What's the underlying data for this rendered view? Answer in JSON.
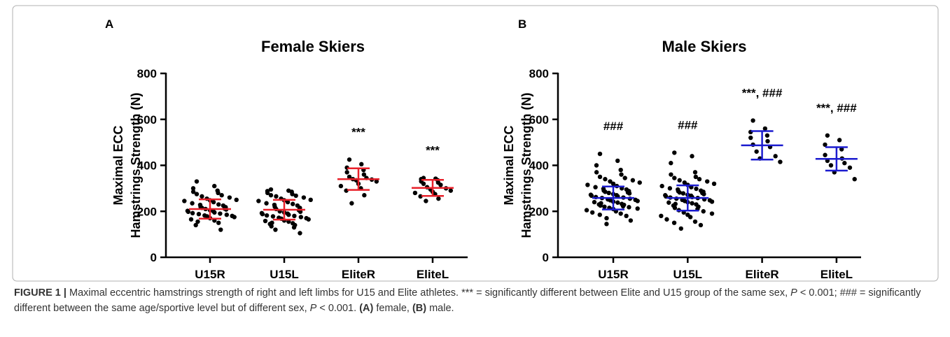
{
  "chart_data": [
    {
      "type": "dotplot",
      "panel_label": "A",
      "title": "Female Skiers",
      "y_label": [
        "Maximal ECC",
        "Hamstrings Strength (N)"
      ],
      "categories": [
        "U15R",
        "U15L",
        "EliteR",
        "EliteL"
      ],
      "ylim": [
        0,
        800
      ],
      "yticks": [
        0,
        200,
        400,
        600,
        800
      ],
      "point_color": "#000000",
      "summary_color": "#e8202a",
      "points": [
        [
          330,
          310,
          300,
          290,
          285,
          280,
          275,
          270,
          265,
          260,
          255,
          250,
          248,
          245,
          240,
          235,
          230,
          228,
          225,
          220,
          218,
          215,
          212,
          210,
          208,
          205,
          202,
          200,
          198,
          195,
          192,
          190,
          188,
          185,
          182,
          180,
          178,
          175,
          170,
          165,
          160,
          155,
          150,
          140,
          120
        ],
        [
          295,
          290,
          288,
          285,
          280,
          275,
          270,
          268,
          265,
          260,
          255,
          250,
          248,
          245,
          240,
          235,
          232,
          228,
          225,
          220,
          215,
          210,
          205,
          200,
          198,
          195,
          192,
          190,
          188,
          185,
          182,
          180,
          178,
          175,
          172,
          170,
          168,
          165,
          160,
          158,
          155,
          150,
          148,
          145,
          140,
          135,
          130,
          120,
          105
        ],
        [
          425,
          405,
          390,
          380,
          370,
          360,
          350,
          345,
          340,
          338,
          335,
          330,
          320,
          310,
          300,
          290,
          270,
          235
        ],
        [
          345,
          342,
          340,
          335,
          330,
          325,
          320,
          315,
          305,
          300,
          295,
          290,
          285,
          280,
          275,
          265,
          255,
          245
        ]
      ],
      "mean": [
        210,
        207,
        340,
        302
      ],
      "sd": [
        42,
        43,
        47,
        35
      ],
      "annotations": [
        null,
        null,
        "***",
        "***"
      ]
    },
    {
      "type": "dotplot",
      "panel_label": "B",
      "title": "Male Skiers",
      "y_label": [
        "Maximal ECC",
        "Hamstrings Strength (N)"
      ],
      "categories": [
        "U15R",
        "U15L",
        "EliteR",
        "EliteL"
      ],
      "ylim": [
        0,
        800
      ],
      "yticks": [
        0,
        200,
        400,
        600,
        800
      ],
      "point_color": "#000000",
      "summary_color": "#1c1ccf",
      "points": [
        [
          450,
          420,
          400,
          380,
          370,
          360,
          350,
          345,
          340,
          335,
          330,
          325,
          320,
          315,
          310,
          305,
          300,
          298,
          295,
          290,
          288,
          285,
          282,
          280,
          278,
          275,
          272,
          270,
          268,
          265,
          262,
          260,
          258,
          255,
          252,
          250,
          248,
          245,
          242,
          240,
          238,
          235,
          232,
          230,
          228,
          225,
          222,
          220,
          218,
          215,
          212,
          210,
          205,
          200,
          195,
          190,
          185,
          180,
          170,
          160,
          145
        ],
        [
          455,
          440,
          410,
          370,
          360,
          350,
          345,
          340,
          335,
          330,
          325,
          320,
          315,
          310,
          305,
          300,
          298,
          295,
          290,
          288,
          285,
          282,
          280,
          278,
          275,
          272,
          270,
          268,
          265,
          262,
          260,
          258,
          255,
          252,
          250,
          248,
          245,
          242,
          240,
          238,
          235,
          232,
          230,
          225,
          220,
          215,
          210,
          205,
          200,
          195,
          190,
          185,
          180,
          175,
          165,
          155,
          150,
          140,
          125
        ],
        [
          595,
          560,
          545,
          530,
          520,
          505,
          490,
          480,
          460,
          440,
          430,
          415
        ],
        [
          530,
          510,
          490,
          470,
          445,
          430,
          420,
          410,
          400,
          390,
          370,
          340
        ]
      ],
      "mean": [
        258,
        258,
        487,
        428
      ],
      "sd": [
        50,
        55,
        62,
        51
      ],
      "annotations": [
        "###",
        "###",
        "***, ###",
        "***, ###"
      ]
    }
  ],
  "caption": [
    "FIGURE 1 |",
    " Maximal eccentric hamstrings strength of right and left limbs for U15 and Elite athletes. *** = significantly different between Elite and U15 group of the same sex, ",
    "P",
    " < 0.001; ### = significantly different between the same age/sportive level but of different sex, ",
    "P",
    " < 0.001. ",
    "(A)",
    " female, ",
    "(B)",
    " male."
  ]
}
